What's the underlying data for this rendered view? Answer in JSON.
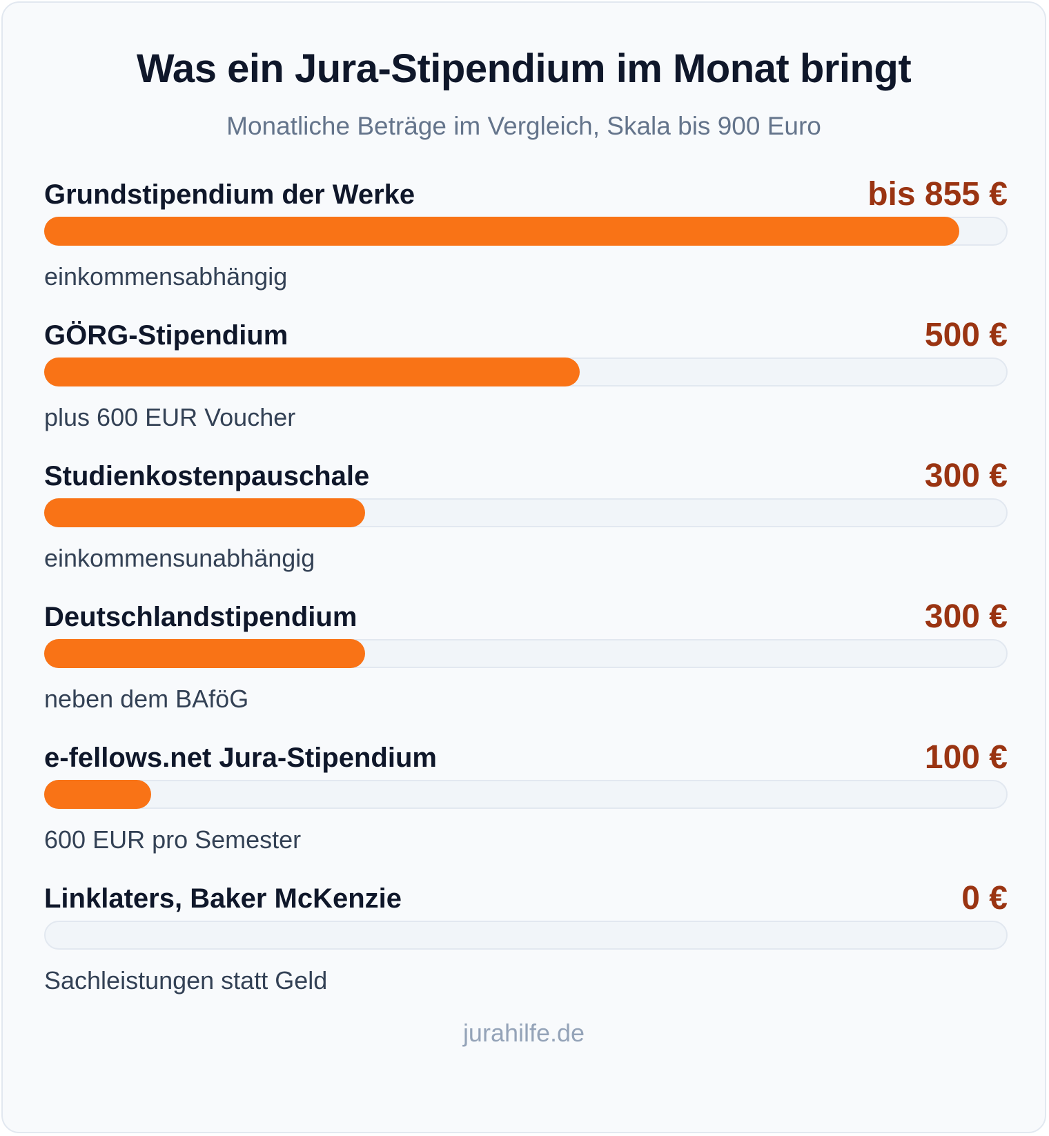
{
  "header": {
    "title": "Was ein Jura-Stipendium im Monat bringt",
    "subtitle": "Monatliche Beträge im Vergleich, Skala bis 900 Euro"
  },
  "footer": {
    "source": "jurahilfe.de"
  },
  "colors": {
    "bar_fill": "#f97316",
    "value_text": "#9a3412",
    "track": "#f1f5f9"
  },
  "chart_data": {
    "type": "bar",
    "orientation": "horizontal",
    "title": "Was ein Jura-Stipendium im Monat bringt",
    "subtitle": "Monatliche Beträge im Vergleich, Skala bis 900 Euro",
    "xlim": [
      0,
      900
    ],
    "grid": false,
    "categories": [
      "Grundstipendium der Werke",
      "GÖRG-Stipendium",
      "Studienkostenpauschale",
      "Deutschlandstipendium",
      "e-fellows.net Jura-Stipendium",
      "Linklaters, Baker McKenzie"
    ],
    "values": [
      855,
      500,
      300,
      300,
      100,
      0
    ],
    "value_labels": [
      "bis 855 €",
      "500 €",
      "300 €",
      "300 €",
      "100 €",
      "0 €"
    ],
    "notes": [
      "einkommensabhängig",
      "plus 600 EUR Voucher",
      "einkommensunabhängig",
      "neben dem BAföG",
      "600 EUR pro Semester",
      "Sachleistungen statt Geld"
    ]
  }
}
